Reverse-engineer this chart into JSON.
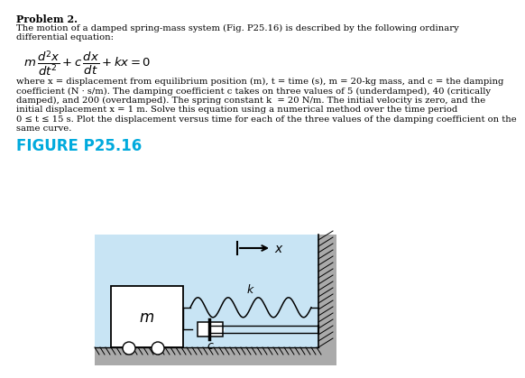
{
  "title": "Problem 2.",
  "body_text": [
    "The motion of a damped spring-mass system (Fig. P25.16) is described by the following ordinary",
    "differential equation:"
  ],
  "param_text": [
    "where x = displacement from equilibrium position (m), t = time (s), m = 20-kg mass, and c = the damping",
    "coefficient (N · s/m). The damping coefficient c takes on three values of 5 (underdamped), 40 (critically",
    "damped), and 200 (overdamped). The spring constant k  = 20 N/m. The initial velocity is zero, and the",
    "initial displacement x = 1 m. Solve this equation using a numerical method over the time period",
    "0 ≤ t ≤ 15 s. Plot the displacement versus time for each of the three values of the damping coefficient on the",
    "same curve."
  ],
  "figure_label": "FIGURE P25.16",
  "figure_label_color": "#00AADD",
  "bg_color": "#FFFFFF",
  "diagram_bg": "#c8e4f4",
  "text_fontsize": 7.2,
  "title_fontsize": 8.0
}
